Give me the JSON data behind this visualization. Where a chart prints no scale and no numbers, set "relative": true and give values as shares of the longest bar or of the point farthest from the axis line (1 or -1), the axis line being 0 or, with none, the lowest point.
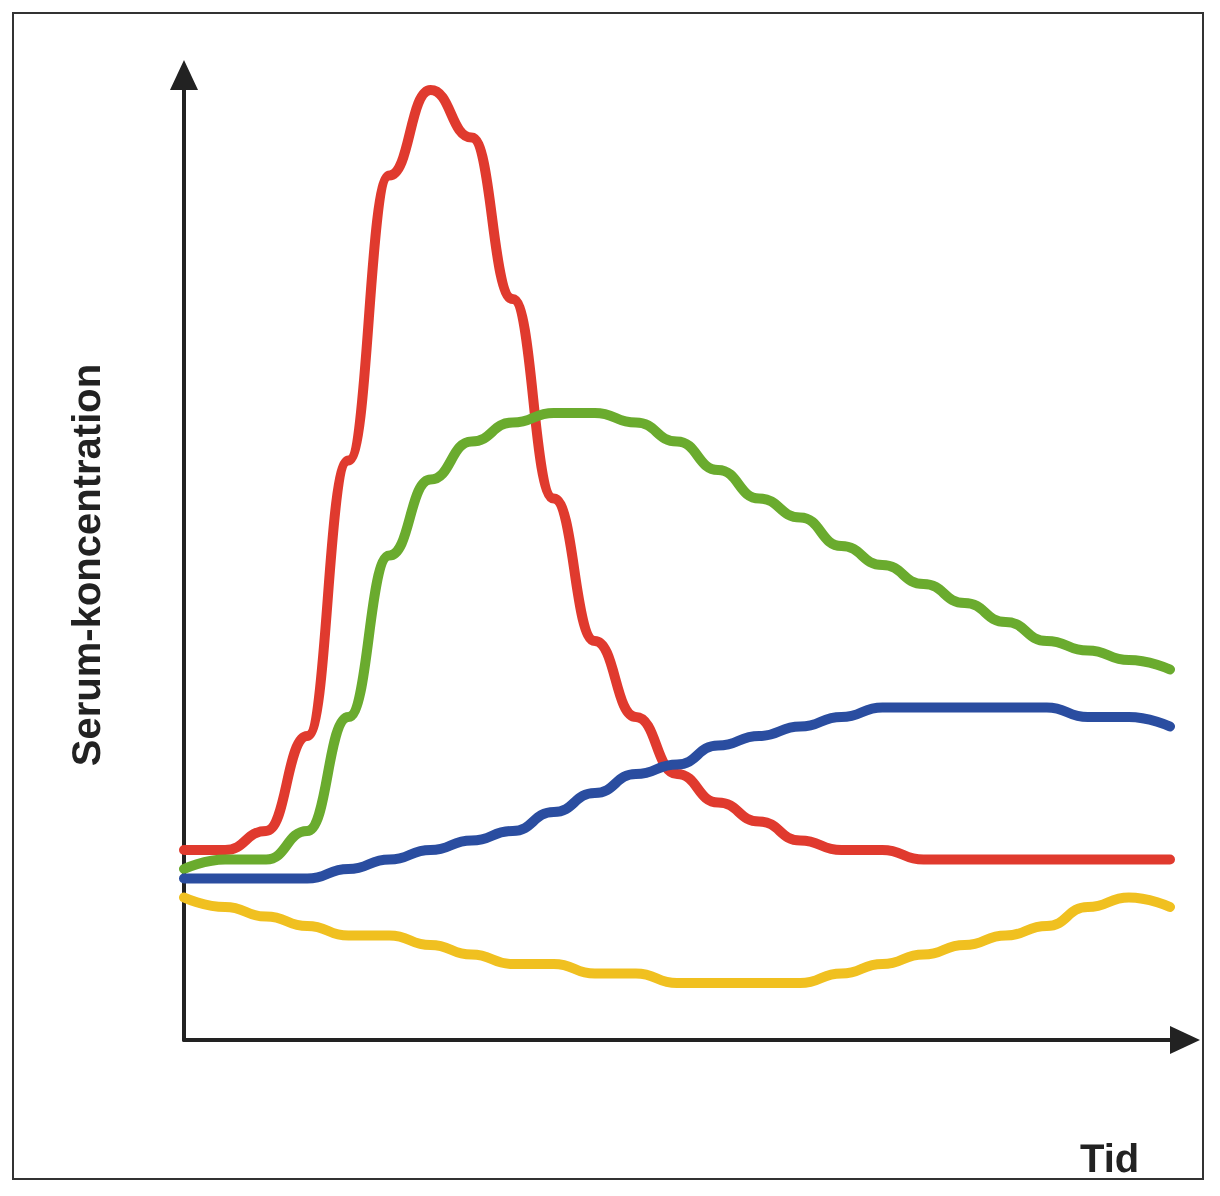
{
  "chart_data": {
    "type": "line",
    "relative": true,
    "xlabel": "Tid",
    "ylabel": "Serum-koncentration",
    "marker": "none",
    "grid": false,
    "categories": [
      null,
      null,
      null,
      null,
      null,
      null,
      null,
      null,
      null,
      null,
      null,
      null,
      null,
      null,
      null,
      null,
      null,
      null,
      null,
      null,
      null,
      null,
      null,
      null,
      null
    ],
    "series": [
      {
        "color": "#e03a2e",
        "values": [
          0.2,
          0.2,
          0.22,
          0.32,
          0.61,
          0.91,
          1,
          0.95,
          0.78,
          0.57,
          0.42,
          0.34,
          0.28,
          0.25,
          0.23,
          0.21,
          0.2,
          0.2,
          0.19,
          0.19,
          0.19,
          0.19,
          0.19,
          0.19,
          0.19
        ]
      },
      {
        "color": "#6aab2e",
        "values": [
          0.18,
          0.19,
          0.19,
          0.22,
          0.34,
          0.51,
          0.59,
          0.63,
          0.65,
          0.66,
          0.66,
          0.65,
          0.63,
          0.6,
          0.57,
          0.55,
          0.52,
          0.5,
          0.48,
          0.46,
          0.44,
          0.42,
          0.41,
          0.4,
          0.39
        ]
      },
      {
        "color": "#2a4da0",
        "values": [
          0.17,
          0.17,
          0.17,
          0.17,
          0.18,
          0.19,
          0.2,
          0.21,
          0.22,
          0.24,
          0.26,
          0.28,
          0.29,
          0.31,
          0.32,
          0.33,
          0.34,
          0.35,
          0.35,
          0.35,
          0.35,
          0.35,
          0.34,
          0.34,
          0.33
        ]
      },
      {
        "color": "#f0c020",
        "values": [
          0.15,
          0.14,
          0.13,
          0.12,
          0.11,
          0.11,
          0.1,
          0.09,
          0.08,
          0.08,
          0.07,
          0.07,
          0.06,
          0.06,
          0.06,
          0.06,
          0.07,
          0.08,
          0.09,
          0.1,
          0.11,
          0.12,
          0.14,
          0.15,
          0.14
        ]
      }
    ]
  }
}
